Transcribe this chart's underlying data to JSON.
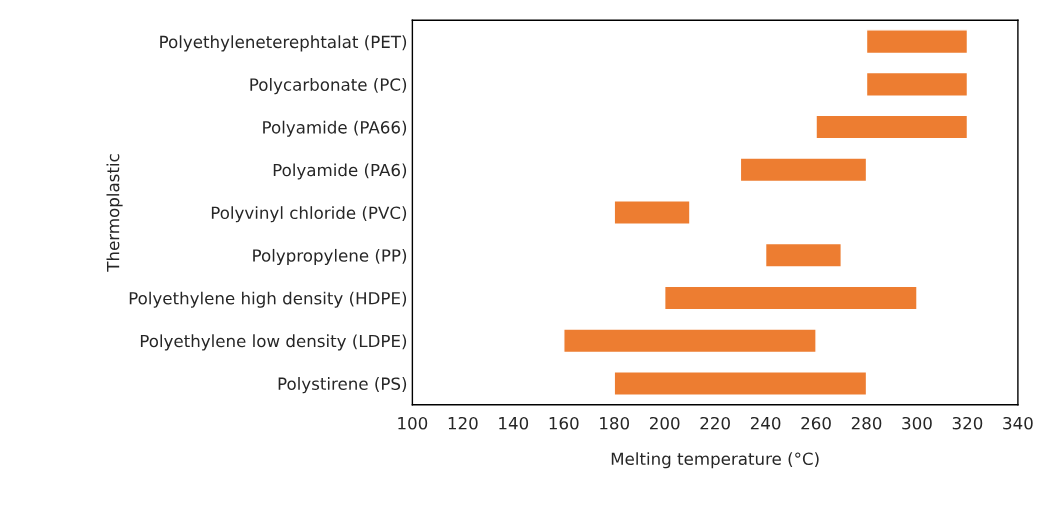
{
  "chart_data": {
    "type": "bar",
    "orientation": "horizontal",
    "xlabel": "Melting temperature (°C)",
    "ylabel": "Thermoplastic",
    "categories": [
      "Polyethyleneterephtalat (PET)",
      "Polycarbonate (PC)",
      "Polyamide (PA66)",
      "Polyamide (PA6)",
      "Polyvinyl chloride (PVC)",
      "Polypropylene (PP)",
      "Polyethylene high density (HDPE)",
      "Polyethylene low density (LDPE)",
      "Polystirene (PS)"
    ],
    "base": [
      280,
      280,
      260,
      230,
      180,
      240,
      200,
      160,
      180
    ],
    "values": [
      40,
      40,
      60,
      50,
      30,
      30,
      100,
      100,
      100
    ],
    "color": "#ed7d31",
    "xlim": [
      100,
      340
    ],
    "xticks": [
      100,
      120,
      140,
      160,
      180,
      200,
      220,
      240,
      260,
      280,
      300,
      320,
      340
    ],
    "grid": false,
    "legend": false
  }
}
